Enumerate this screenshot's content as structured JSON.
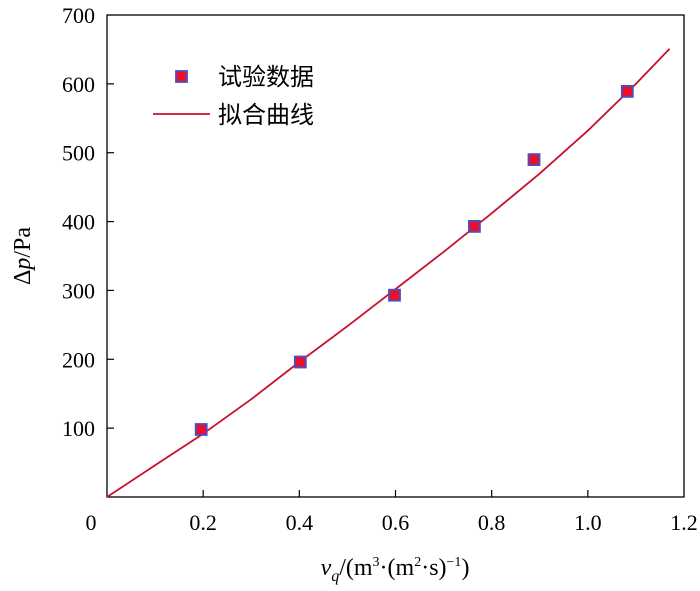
{
  "chart_data": {
    "type": "scatter",
    "xlim": [
      0,
      1.2
    ],
    "ylim": [
      0,
      700
    ],
    "x_ticks": [
      0,
      0.2,
      0.4,
      0.6,
      0.8,
      1.0,
      1.2
    ],
    "x_tick_labels": [
      "0",
      "0.2",
      "0.4",
      "0.6",
      "0.8",
      "1.0",
      "1.2"
    ],
    "y_ticks": [
      100,
      200,
      300,
      400,
      500,
      600,
      700
    ],
    "y_tick_labels": [
      "100",
      "200",
      "300",
      "400",
      "500",
      "600",
      "700"
    ],
    "xlabel": {
      "v": "v",
      "q": "q",
      "open": "/(m",
      "sup3": "3",
      "mid": "·(m",
      "sup2": "2",
      "dot_s": "·s)",
      "sup_neg1": "−1",
      "close": ")"
    },
    "ylabel": {
      "delta": "Δ",
      "p": "p",
      "unit": "/Pa"
    },
    "grid": false,
    "legend_position": "top-left",
    "series": [
      {
        "name": "试验数据",
        "kind": "markers",
        "marker": "square",
        "fill_color": "#e8102a",
        "edge_color": "#4a4fc4",
        "x": [
          0.196,
          0.402,
          0.598,
          0.764,
          0.888,
          1.082
        ],
        "y": [
          98,
          196,
          293,
          393,
          490,
          589
        ]
      },
      {
        "name": "拟合曲线",
        "kind": "line",
        "color": "#c8102e",
        "x": [
          0.0,
          0.1,
          0.2,
          0.3,
          0.4,
          0.5,
          0.6,
          0.7,
          0.8,
          0.9,
          1.0,
          1.1,
          1.17
        ],
        "y": [
          0,
          46,
          92,
          142,
          196,
          248,
          302,
          356,
          412,
          470,
          532,
          600,
          651
        ]
      }
    ]
  }
}
